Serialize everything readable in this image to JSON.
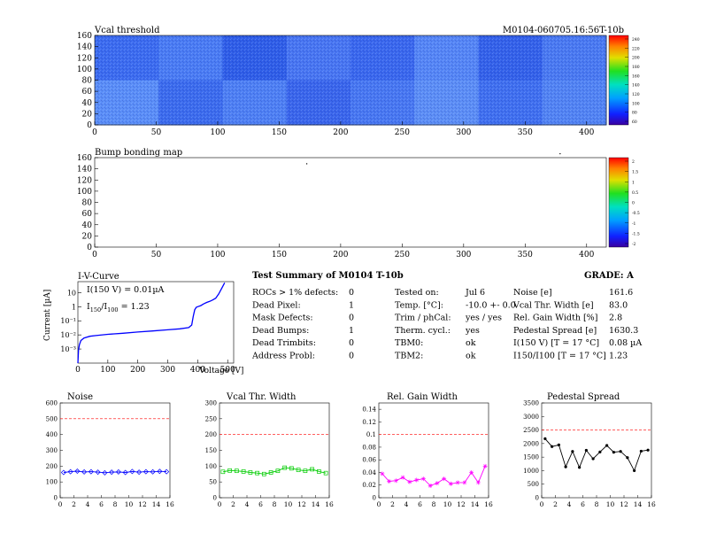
{
  "header": {
    "vcal_title": "Vcal threshold",
    "module_id": "M0104-060705.16:56T-10b"
  },
  "vcal_map": {
    "x_ticks": [
      "0",
      "50",
      "100",
      "150",
      "200",
      "250",
      "300",
      "350",
      "400"
    ],
    "y_ticks": [
      "0",
      "20",
      "40",
      "60",
      "80",
      "100",
      "120",
      "140",
      "160"
    ],
    "palette_ticks": [
      "240",
      "220",
      "200",
      "180",
      "160",
      "140",
      "120",
      "100",
      "80",
      "60"
    ]
  },
  "bump_map": {
    "title": "Bump bonding map",
    "x_ticks": [
      "0",
      "50",
      "100",
      "150",
      "200",
      "250",
      "300",
      "350",
      "400"
    ],
    "y_ticks": [
      "0",
      "20",
      "40",
      "60",
      "80",
      "100",
      "120",
      "140",
      "160"
    ],
    "palette_ticks": [
      "2",
      "1.5",
      "1",
      "0.5",
      "0",
      "-0.5",
      "-1",
      "-1.5",
      "-2"
    ]
  },
  "iv_curve": {
    "title": "I-V-Curve",
    "ylabel": "Current [µA]",
    "xlabel": "Voltage [V]",
    "x_ticks": [
      "0",
      "100",
      "200",
      "300",
      "400",
      "500"
    ],
    "y_ticks": [
      "10",
      "1",
      "10⁻¹",
      "10⁻²",
      "10⁻³"
    ],
    "note1": "I(150 V) = 0.01µA",
    "note2": "I150/I100 = 1.23",
    "note2_main": "I",
    "note2_sub1": "150",
    "note2_mid": "/I",
    "note2_sub2": "100",
    "note2_end": " = 1.23"
  },
  "summary": {
    "title": "Test Summary of M0104    T-10b",
    "grade": "GRADE:  A",
    "left": [
      {
        "label": "ROCs > 1% defects:",
        "value": "0"
      },
      {
        "label": "Dead Pixel:",
        "value": "1"
      },
      {
        "label": "Mask Defects:",
        "value": "0"
      },
      {
        "label": "Dead Bumps:",
        "value": "1"
      },
      {
        "label": "Dead Trimbits:",
        "value": "0"
      },
      {
        "label": "Address Probl:",
        "value": "0"
      }
    ],
    "mid": [
      {
        "label": "Tested on:",
        "value": "Jul 6"
      },
      {
        "label": "Temp. [°C]:",
        "value": "-10.0 +- 0.0"
      },
      {
        "label": "Trim / phCal:",
        "value": "yes / yes"
      },
      {
        "label": "Therm. cycl.:",
        "value": "yes"
      },
      {
        "label": "TBM0:",
        "value": "ok"
      },
      {
        "label": "TBM2:",
        "value": "ok"
      }
    ],
    "right": [
      {
        "label": "Noise [e]",
        "value": "161.6"
      },
      {
        "label": "Vcal Thr. Width [e]",
        "value": "83.0"
      },
      {
        "label": "Rel. Gain Width [%]",
        "value": "2.8"
      },
      {
        "label": "Pedestal Spread [e]",
        "value": "1630.3"
      },
      {
        "label": "I(150 V) [T = 17 °C]",
        "value": "0.08 µA"
      },
      {
        "label": "I150/I100  [T = 17 °C]",
        "value": "1.23"
      }
    ]
  },
  "chart_data": [
    {
      "type": "heatmap",
      "title": "Vcal threshold",
      "xlim": [
        0,
        416
      ],
      "ylim": [
        0,
        160
      ],
      "palette_range": [
        60,
        240
      ],
      "description_values": "Per-pixel Vcal threshold map, 16 ROC tiles (8 x 2); values mostly in the 100-140 range"
    },
    {
      "type": "heatmap",
      "title": "Bump bonding map",
      "xlim": [
        0,
        416
      ],
      "ylim": [
        0,
        160
      ],
      "palette_range": [
        -2,
        2
      ],
      "defect_pixels": [
        [
          172,
          150
        ],
        [
          378,
          168
        ]
      ]
    },
    {
      "type": "line",
      "title": "I-V-Curve",
      "xlabel": "Voltage [V]",
      "ylabel": "Current [µA]",
      "xlim": [
        0,
        520
      ],
      "ylim_log": [
        0.0001,
        60
      ],
      "x": [
        0,
        2,
        5,
        10,
        20,
        40,
        60,
        100,
        150,
        200,
        250,
        300,
        340,
        370,
        380,
        385,
        390,
        395,
        400,
        410,
        420,
        430,
        440,
        450,
        460,
        470,
        480,
        490
      ],
      "y": [
        0.0001,
        0.0008,
        0.002,
        0.004,
        0.006,
        0.008,
        0.009,
        0.011,
        0.013,
        0.016,
        0.019,
        0.023,
        0.027,
        0.033,
        0.05,
        0.2,
        0.6,
        0.9,
        1.0,
        1.2,
        1.6,
        2.0,
        2.4,
        3.0,
        4.0,
        8.0,
        20,
        50
      ]
    },
    {
      "type": "line",
      "title": "Noise",
      "xlim": [
        0,
        16
      ],
      "ylim": [
        0,
        600
      ],
      "x_ticks": [
        0,
        2,
        4,
        6,
        8,
        10,
        12,
        14,
        16
      ],
      "y_ticks": [
        0,
        100,
        200,
        300,
        400,
        500,
        600
      ],
      "threshold": 500,
      "x": [
        0.5,
        1.5,
        2.5,
        3.5,
        4.5,
        5.5,
        6.5,
        7.5,
        8.5,
        9.5,
        10.5,
        11.5,
        12.5,
        13.5,
        14.5,
        15.5
      ],
      "y": [
        160,
        165,
        168,
        163,
        165,
        162,
        158,
        162,
        163,
        160,
        166,
        162,
        165,
        164,
        167,
        165
      ],
      "color": "#0000ff"
    },
    {
      "type": "line",
      "title": "Vcal Thr. Width",
      "xlim": [
        0,
        16
      ],
      "ylim": [
        0,
        300
      ],
      "x_ticks": [
        0,
        2,
        4,
        6,
        8,
        10,
        12,
        14,
        16
      ],
      "y_ticks": [
        0,
        50,
        100,
        150,
        200,
        250,
        300
      ],
      "threshold": 200,
      "x": [
        0.5,
        1.5,
        2.5,
        3.5,
        4.5,
        5.5,
        6.5,
        7.5,
        8.5,
        9.5,
        10.5,
        11.5,
        12.5,
        13.5,
        14.5,
        15.5
      ],
      "y": [
        82,
        86,
        85,
        83,
        80,
        78,
        75,
        80,
        85,
        95,
        93,
        88,
        85,
        90,
        83,
        78
      ],
      "color": "#00cc00"
    },
    {
      "type": "line",
      "title": "Rel. Gain Width",
      "xlim": [
        0,
        16
      ],
      "ylim": [
        0,
        0.15
      ],
      "x_ticks": [
        0,
        2,
        4,
        6,
        8,
        10,
        12,
        14,
        16
      ],
      "y_ticks": [
        0,
        0.02,
        0.04,
        0.06,
        0.08,
        0.1,
        0.12,
        0.14
      ],
      "threshold": 0.1,
      "x": [
        0.5,
        1.5,
        2.5,
        3.5,
        4.5,
        5.5,
        6.5,
        7.5,
        8.5,
        9.5,
        10.5,
        11.5,
        12.5,
        13.5,
        14.5,
        15.5
      ],
      "y": [
        0.038,
        0.026,
        0.027,
        0.032,
        0.025,
        0.028,
        0.03,
        0.019,
        0.023,
        0.03,
        0.022,
        0.024,
        0.024,
        0.04,
        0.024,
        0.05
      ],
      "color": "#ff00ff"
    },
    {
      "type": "line",
      "title": "Pedestal Spread",
      "xlim": [
        0,
        16
      ],
      "ylim": [
        0,
        3500
      ],
      "x_ticks": [
        0,
        2,
        4,
        6,
        8,
        10,
        12,
        14,
        16
      ],
      "y_ticks": [
        0,
        500,
        1000,
        1500,
        2000,
        2500,
        3000,
        3500
      ],
      "threshold": 2500,
      "x": [
        0.5,
        1.5,
        2.5,
        3.5,
        4.5,
        5.5,
        6.5,
        7.5,
        8.5,
        9.5,
        10.5,
        11.5,
        12.5,
        13.5,
        14.5,
        15.5
      ],
      "y": [
        2180,
        1890,
        1950,
        1140,
        1710,
        1120,
        1750,
        1440,
        1690,
        1930,
        1680,
        1710,
        1480,
        1000,
        1720,
        1760
      ],
      "color": "#000000"
    }
  ]
}
